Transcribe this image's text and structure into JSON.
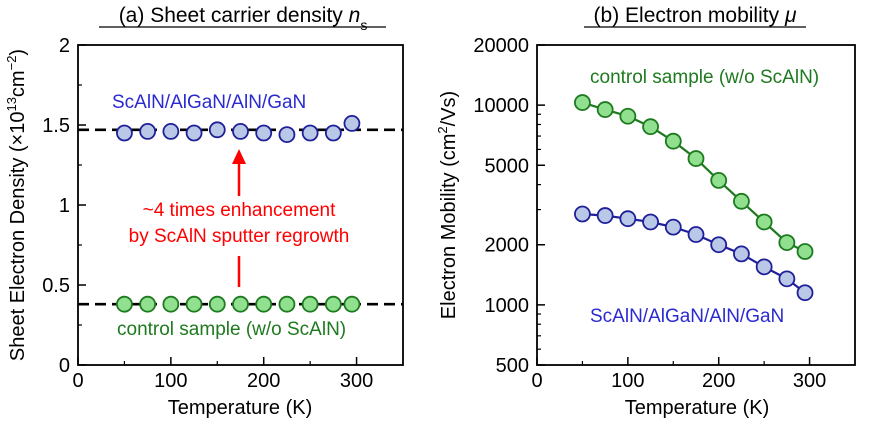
{
  "colors": {
    "blue_fill": "#b8c8e6",
    "blue_edge": "#1f1f9a",
    "blue_text": "#2a2ad0",
    "green_fill": "#90e090",
    "green_edge": "#1e7a1e",
    "green_text": "#1e7a1e",
    "red": "#ff0000"
  },
  "chart_data": [
    {
      "type": "scatter",
      "title_prefix": "(a) Sheet carrier density ",
      "title_symbol": "n",
      "title_sub": "s",
      "xlabel": "Temperature (K)",
      "ylabel_main": "Sheet Electron Density (×10",
      "ylabel_exp1": "13",
      "ylabel_mid": "cm",
      "ylabel_exp2": "−2",
      "ylabel_end": ")",
      "xlim": [
        0,
        350
      ],
      "ylim": [
        0,
        2
      ],
      "xticks": [
        0,
        100,
        200,
        300
      ],
      "xtick_labels": [
        "0",
        "100",
        "200",
        "300"
      ],
      "yticks": [
        0,
        0.5,
        1,
        1.5,
        2
      ],
      "ytick_labels": [
        "0",
        "0.5",
        "1",
        "1.5",
        "2"
      ],
      "grid": false,
      "series": [
        {
          "name": "ScAlN/AlGaN/AlN/GaN",
          "color": "blue",
          "x": [
            50,
            75,
            100,
            125,
            150,
            175,
            200,
            225,
            250,
            275,
            295
          ],
          "y": [
            1.45,
            1.46,
            1.46,
            1.45,
            1.47,
            1.46,
            1.45,
            1.44,
            1.45,
            1.45,
            1.51
          ]
        },
        {
          "name": "control sample (w/o ScAlN)",
          "color": "green",
          "x": [
            50,
            75,
            100,
            125,
            150,
            175,
            200,
            225,
            250,
            275,
            295
          ],
          "y": [
            0.38,
            0.38,
            0.38,
            0.38,
            0.38,
            0.38,
            0.38,
            0.38,
            0.38,
            0.38,
            0.38
          ]
        }
      ],
      "reference_lines": [
        1.47,
        0.38
      ],
      "annotation_line1": "~4 times enhancement",
      "annotation_line2": "by ScAlN sputter regrowth"
    },
    {
      "type": "line",
      "title_prefix": "(b) Electron mobility ",
      "title_symbol": "μ",
      "xlabel": "Temperature (K)",
      "ylabel_main": "Electron Mobility (cm",
      "ylabel_exp": "2",
      "ylabel_end": "/Vs)",
      "xlim": [
        0,
        350
      ],
      "ylim": [
        500,
        20000
      ],
      "yscale": "log",
      "xticks": [
        0,
        100,
        200,
        300
      ],
      "xtick_labels": [
        "0",
        "100",
        "200",
        "300"
      ],
      "yticks": [
        500,
        1000,
        2000,
        5000,
        10000,
        20000
      ],
      "ytick_labels": [
        "500",
        "1000",
        "2000",
        "5000",
        "10000",
        "20000"
      ],
      "grid": false,
      "series": [
        {
          "name": "control sample (w/o ScAlN)",
          "color": "green",
          "x": [
            50,
            75,
            100,
            125,
            150,
            175,
            200,
            225,
            250,
            275,
            295
          ],
          "y": [
            10300,
            9500,
            8800,
            7800,
            6600,
            5400,
            4200,
            3300,
            2600,
            2050,
            1850
          ]
        },
        {
          "name": "ScAlN/AlGaN/AlN/GaN",
          "color": "blue",
          "x": [
            50,
            75,
            100,
            125,
            150,
            175,
            200,
            225,
            250,
            275,
            295
          ],
          "y": [
            2850,
            2800,
            2700,
            2600,
            2450,
            2250,
            2000,
            1800,
            1550,
            1350,
            1150
          ]
        }
      ]
    }
  ]
}
